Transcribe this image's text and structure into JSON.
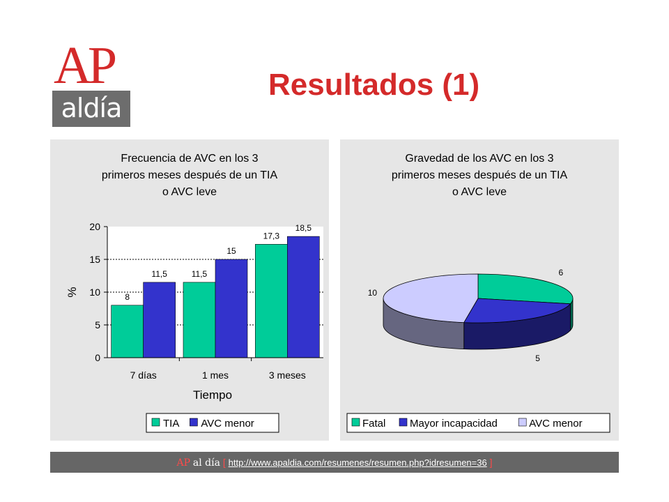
{
  "header": {
    "logo": {
      "top": "AP",
      "bottom": "aldía"
    },
    "title": "Resultados (1)"
  },
  "footer": {
    "brand_ap": "AP",
    "brand_rest": "al día",
    "bracket_open": "[",
    "url": "http://www.apaldia.com/resumenes/resumen.php?idresumen=36",
    "bracket_close": "]"
  },
  "chart_data": [
    {
      "type": "bar",
      "title_lines": [
        "Frecuencia de AVC en los 3",
        "primeros meses después de un TIA",
        "o AVC leve"
      ],
      "categories": [
        "7 días",
        "1 mes",
        "3 meses"
      ],
      "series": [
        {
          "name": "TIA",
          "values": [
            8,
            11.5,
            17.3
          ],
          "labels": [
            "8",
            "11,5",
            "17,3"
          ],
          "color": "#00cc99"
        },
        {
          "name": "AVC menor",
          "values": [
            11.5,
            15,
            18.5
          ],
          "labels": [
            "11,5",
            "15",
            "18,5"
          ],
          "color": "#3333cc"
        }
      ],
      "xlabel": "Tiempo",
      "ylabel": "%",
      "ylim": [
        0,
        20
      ],
      "yticks": [
        0,
        5,
        10,
        15,
        20
      ],
      "grid": "horizontal dotted",
      "legend": "bottom"
    },
    {
      "type": "pie",
      "title_lines": [
        "Gravedad de los AVC en los 3",
        "primeros meses después de un TIA",
        "o AVC leve"
      ],
      "slices": [
        {
          "name": "Fatal",
          "value": 6,
          "label": "6",
          "color": "#00cc99"
        },
        {
          "name": "Mayor incapacidad",
          "value": 5,
          "label": "5",
          "color": "#3333cc"
        },
        {
          "name": "AVC menor",
          "value": 10,
          "label": "10",
          "color": "#ccccff"
        }
      ],
      "style": "3d",
      "legend": "bottom"
    }
  ]
}
